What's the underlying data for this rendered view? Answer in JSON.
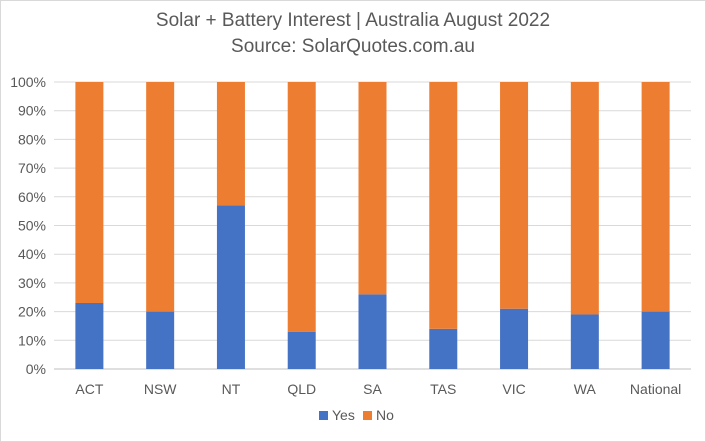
{
  "chart_data": {
    "type": "bar",
    "stacked": true,
    "title": "Solar + Battery Interest | Australia August 2022",
    "subtitle": "Source: SolarQuotes.com.au",
    "categories": [
      "ACT",
      "NSW",
      "NT",
      "QLD",
      "SA",
      "TAS",
      "VIC",
      "WA",
      "National"
    ],
    "series": [
      {
        "name": "Yes",
        "color": "#4472c4",
        "values": [
          23,
          20,
          57,
          13,
          26,
          14,
          21,
          19,
          20
        ]
      },
      {
        "name": "No",
        "color": "#ed7d31",
        "values": [
          77,
          80,
          43,
          87,
          74,
          86,
          79,
          81,
          80
        ]
      }
    ],
    "yticks": [
      "0%",
      "10%",
      "20%",
      "30%",
      "40%",
      "50%",
      "60%",
      "70%",
      "80%",
      "90%",
      "100%"
    ],
    "ylim": [
      0,
      100
    ],
    "grid": true,
    "legend": "bottom"
  }
}
